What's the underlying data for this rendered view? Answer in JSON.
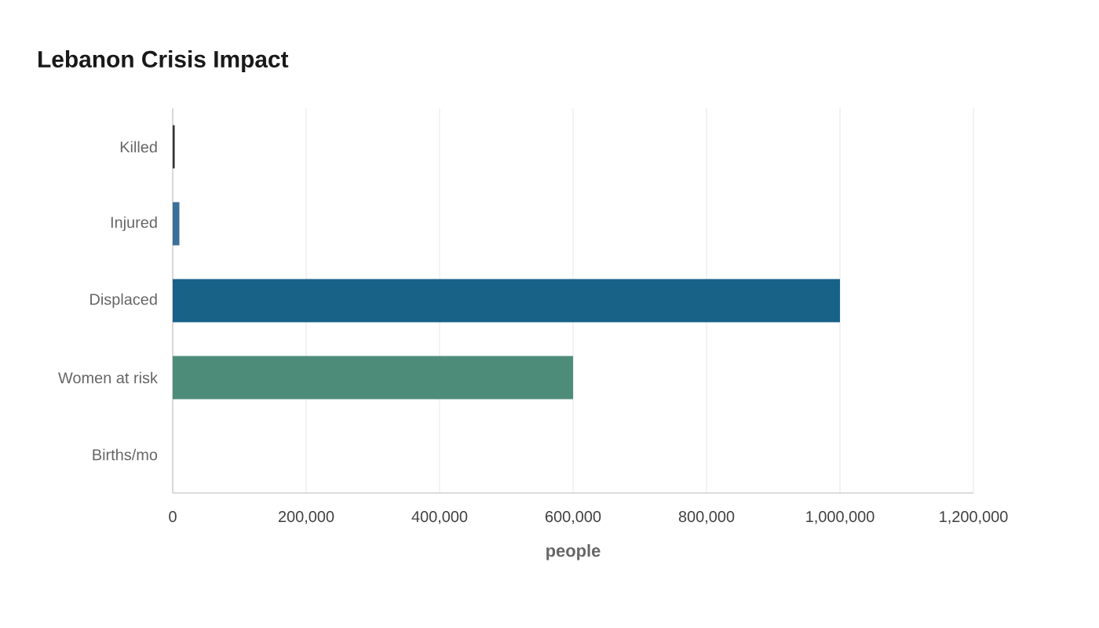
{
  "chart_data": {
    "type": "bar",
    "orientation": "horizontal",
    "title": "Lebanon Crisis Impact",
    "xlabel": "people",
    "categories": [
      "Killed",
      "Injured",
      "Displaced",
      "Women at risk",
      "Births/mo"
    ],
    "values": [
      3000,
      10000,
      1000000,
      600000,
      1000
    ],
    "colors": [
      "#333333",
      "#3a6f9a",
      "#186187",
      "#4e8c7a",
      "#d9d9d9"
    ],
    "xlim": [
      0,
      1200000
    ],
    "xticks": [
      0,
      {
        "value": 200000,
        "label": "200,000"
      },
      {
        "value": 400000,
        "label": "400,000"
      },
      {
        "value": 600000,
        "label": "600,000"
      },
      {
        "value": 800000,
        "label": "800,000"
      },
      {
        "value": 1000000,
        "label": "1,000,000"
      },
      {
        "value": 1200000,
        "label": "1,200,000"
      }
    ],
    "grid": "x"
  }
}
